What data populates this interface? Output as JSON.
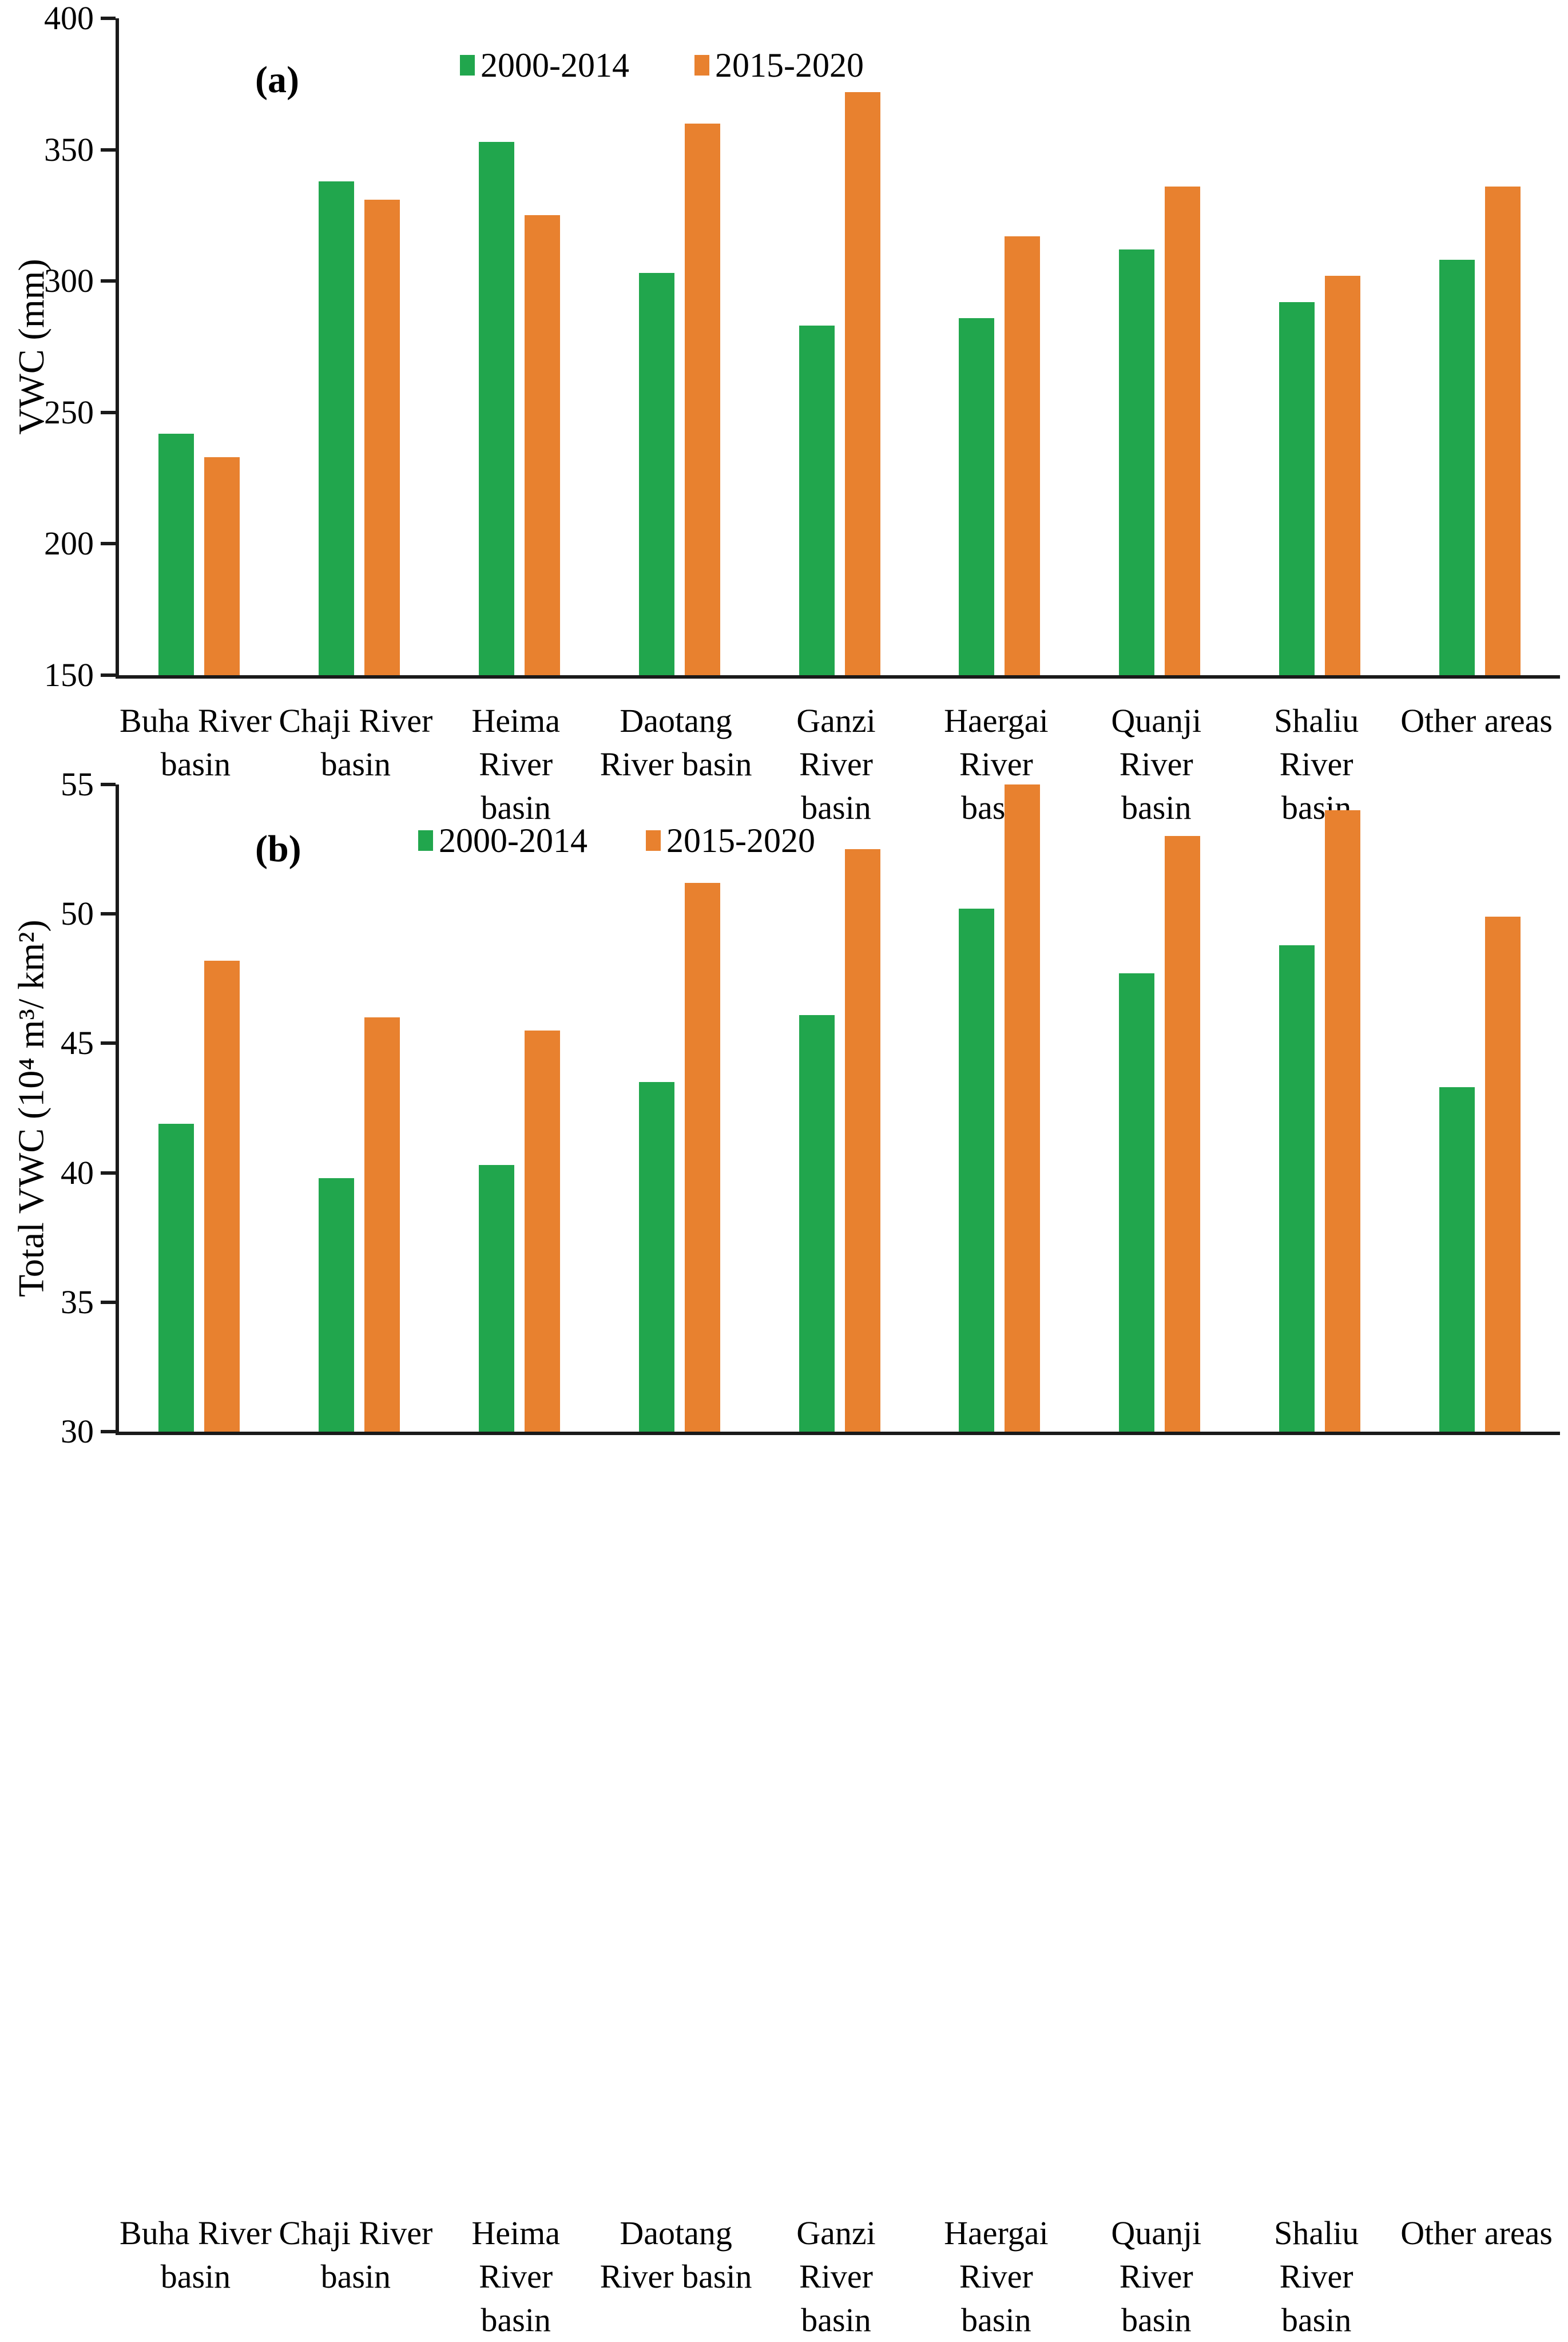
{
  "colors": {
    "series1": "#21A64D",
    "series2": "#E8812F",
    "axis": "#1a1a1a"
  },
  "chart_data": [
    {
      "type": "bar",
      "panel_tag": "(a)",
      "ylabel": "VWC (mm)",
      "xlabel": "",
      "ylim": [
        150,
        400
      ],
      "yticks": [
        150,
        200,
        250,
        300,
        350,
        400
      ],
      "grid": false,
      "legend_position": "top-center-inside",
      "categories": [
        "Buha River basin",
        "Chaji River basin",
        "Heima River basin",
        "Daotang River basin",
        "Ganzi River basin",
        "Haergai River basin",
        "Quanji River basin",
        "Shaliu River basin",
        "Other areas"
      ],
      "category_label_lines": [
        [
          "Buha River",
          "basin"
        ],
        [
          "Chaji River",
          "basin"
        ],
        [
          "Heima River",
          "basin"
        ],
        [
          "Daotang",
          "River basin"
        ],
        [
          "Ganzi River",
          "basin"
        ],
        [
          "Haergai River",
          "basin"
        ],
        [
          "Quanji River",
          "basin"
        ],
        [
          "Shaliu River",
          "basin"
        ],
        [
          "Other areas"
        ]
      ],
      "series": [
        {
          "name": "2000-2014",
          "color": "#21A64D",
          "values": [
            242,
            338,
            353,
            303,
            283,
            286,
            312,
            292,
            308
          ]
        },
        {
          "name": "2015-2020",
          "color": "#E8812F",
          "values": [
            233,
            331,
            325,
            360,
            372,
            317,
            336,
            302,
            336
          ]
        }
      ]
    },
    {
      "type": "bar",
      "panel_tag": "(b)",
      "ylabel": "Total VWC (10⁴ m³/ km²)",
      "xlabel": "",
      "ylim": [
        30,
        55
      ],
      "yticks": [
        30,
        35,
        40,
        45,
        50,
        55
      ],
      "grid": false,
      "legend_position": "top-center-inside",
      "categories": [
        "Buha River basin",
        "Chaji River basin",
        "Heima River basin",
        "Daotang River basin",
        "Ganzi River basin",
        "Haergai River basin",
        "Quanji River basin",
        "Shaliu River basin",
        "Other areas"
      ],
      "category_label_lines": [
        [
          "Buha River",
          "basin"
        ],
        [
          "Chaji River",
          "basin"
        ],
        [
          "Heima River",
          "basin"
        ],
        [
          "Daotang",
          "River basin"
        ],
        [
          "Ganzi River",
          "basin"
        ],
        [
          "Haergai River",
          "basin"
        ],
        [
          "Quanji River",
          "basin"
        ],
        [
          "Shaliu River",
          "basin"
        ],
        [
          "Other areas"
        ]
      ],
      "series": [
        {
          "name": "2000-2014",
          "color": "#21A64D",
          "values": [
            41.9,
            39.8,
            40.3,
            43.5,
            46.1,
            50.2,
            47.7,
            48.8,
            43.3
          ]
        },
        {
          "name": "2015-2020",
          "color": "#E8812F",
          "values": [
            48.2,
            46.0,
            45.5,
            51.2,
            52.5,
            55.0,
            53.0,
            54.0,
            49.9
          ]
        }
      ]
    }
  ]
}
